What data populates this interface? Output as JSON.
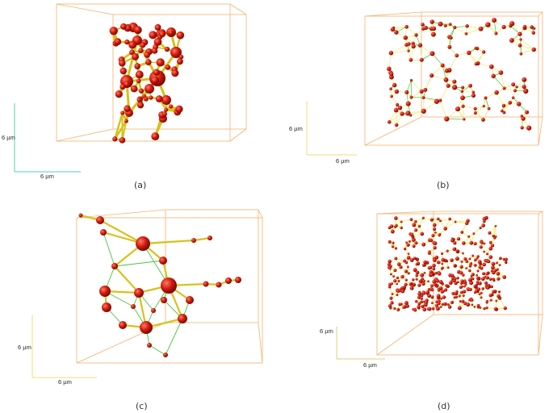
{
  "figure": {
    "panels": [
      {
        "id": "a",
        "caption": "(a)",
        "scale_x_label": "6 µm",
        "scale_y_label": "6 µm",
        "axis_color": "#4fd6a8"
      },
      {
        "id": "b",
        "caption": "(b)",
        "scale_x_label": "6 µm",
        "scale_y_label": "6 µm",
        "axis_color": "#e9e07a"
      },
      {
        "id": "c",
        "caption": "(c)",
        "scale_x_label": "6 µm",
        "scale_y_label": "6 µm",
        "axis_color": "#e9e07a"
      },
      {
        "id": "d",
        "caption": "(d)",
        "scale_x_label": "6 µm",
        "scale_y_label": "6 µm",
        "axis_color": "#d9d27a"
      }
    ],
    "colors": {
      "box": "#f5b26b",
      "node": "#d11a0c",
      "node_highlight": "#ff7a66",
      "edge_thick": "#d6c21a",
      "edge_thin": "#48c63c",
      "edge_pale": "#f2ea6a"
    }
  }
}
